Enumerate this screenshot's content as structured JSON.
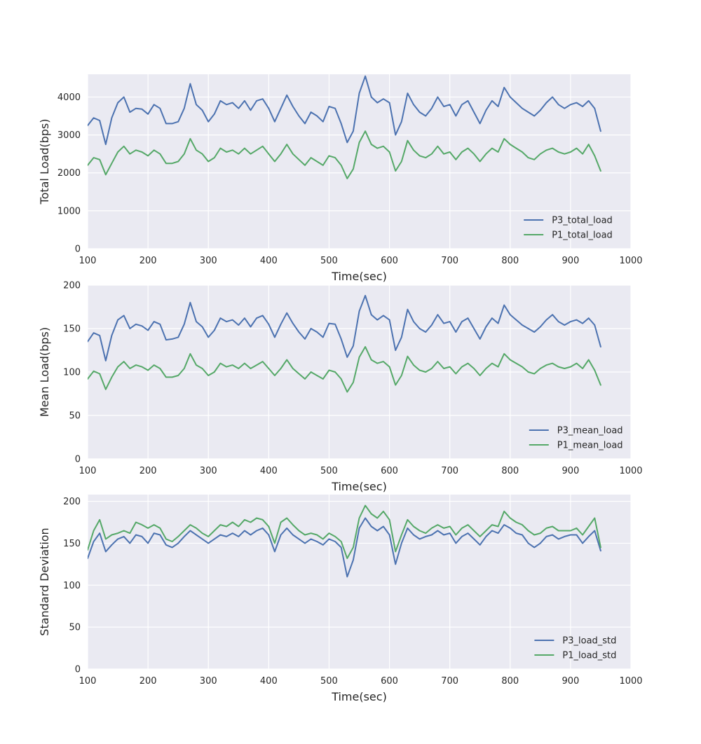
{
  "colors": {
    "series_a": "#4C72B0",
    "series_b": "#55A868"
  },
  "chart_data": [
    {
      "type": "line",
      "xlabel": "Time(sec)",
      "ylabel": "Total Load(bps)",
      "xlim": [
        100,
        1000
      ],
      "ylim": [
        0,
        4600
      ],
      "xticks": [
        "100",
        "200",
        "300",
        "400",
        "500",
        "600",
        "700",
        "800",
        "900",
        "1000"
      ],
      "yticks": [
        "0",
        "1000",
        "2000",
        "3000",
        "4000"
      ],
      "ytick_values": [
        0,
        1000,
        2000,
        3000,
        4000
      ],
      "legend_position": "lower-right",
      "x": [
        100,
        110,
        120,
        130,
        140,
        150,
        160,
        170,
        180,
        190,
        200,
        210,
        220,
        230,
        240,
        250,
        260,
        270,
        280,
        290,
        300,
        310,
        320,
        330,
        340,
        350,
        360,
        370,
        380,
        390,
        400,
        410,
        420,
        430,
        440,
        450,
        460,
        470,
        480,
        490,
        500,
        510,
        520,
        530,
        540,
        550,
        560,
        570,
        580,
        590,
        600,
        610,
        620,
        630,
        640,
        650,
        660,
        670,
        680,
        690,
        700,
        710,
        720,
        730,
        740,
        750,
        760,
        770,
        780,
        790,
        800,
        810,
        820,
        830,
        840,
        850,
        860,
        870,
        880,
        890,
        900,
        910,
        920,
        930,
        940,
        950
      ],
      "series": [
        {
          "name": "P3_total_load",
          "values": [
            3250,
            3450,
            3380,
            2750,
            3450,
            3850,
            4000,
            3600,
            3700,
            3680,
            3550,
            3800,
            3700,
            3300,
            3300,
            3350,
            3700,
            4350,
            3800,
            3650,
            3350,
            3550,
            3900,
            3800,
            3850,
            3700,
            3900,
            3650,
            3900,
            3950,
            3700,
            3350,
            3700,
            4050,
            3750,
            3500,
            3300,
            3600,
            3500,
            3350,
            3750,
            3700,
            3300,
            2800,
            3100,
            4100,
            4550,
            4000,
            3850,
            3950,
            3850,
            3000,
            3350,
            4100,
            3800,
            3600,
            3500,
            3700,
            4000,
            3750,
            3800,
            3500,
            3800,
            3900,
            3600,
            3300,
            3650,
            3900,
            3750,
            4250,
            4000,
            3850,
            3700,
            3600,
            3500,
            3650,
            3850,
            4000,
            3800,
            3700,
            3800,
            3850,
            3750,
            3900,
            3700,
            3100
          ]
        },
        {
          "name": "P1_total_load",
          "values": [
            2200,
            2400,
            2350,
            1950,
            2250,
            2550,
            2700,
            2500,
            2600,
            2550,
            2450,
            2600,
            2500,
            2250,
            2250,
            2300,
            2500,
            2900,
            2600,
            2500,
            2300,
            2400,
            2650,
            2550,
            2600,
            2500,
            2650,
            2500,
            2600,
            2700,
            2500,
            2300,
            2500,
            2750,
            2500,
            2350,
            2200,
            2400,
            2300,
            2200,
            2450,
            2400,
            2200,
            1850,
            2100,
            2800,
            3100,
            2750,
            2650,
            2700,
            2550,
            2050,
            2300,
            2850,
            2600,
            2450,
            2400,
            2500,
            2700,
            2500,
            2550,
            2350,
            2550,
            2650,
            2500,
            2300,
            2500,
            2650,
            2550,
            2900,
            2750,
            2650,
            2550,
            2400,
            2350,
            2500,
            2600,
            2650,
            2550,
            2500,
            2550,
            2650,
            2500,
            2750,
            2450,
            2050
          ]
        }
      ]
    },
    {
      "type": "line",
      "xlabel": "Time(sec)",
      "ylabel": "Mean Load(bps)",
      "xlim": [
        100,
        1000
      ],
      "ylim": [
        0,
        200
      ],
      "xticks": [
        "100",
        "200",
        "300",
        "400",
        "500",
        "600",
        "700",
        "800",
        "900",
        "1000"
      ],
      "yticks": [
        "0",
        "50",
        "100",
        "150",
        "200"
      ],
      "ytick_values": [
        0,
        50,
        100,
        150,
        200
      ],
      "legend_position": "lower-right",
      "x": [
        100,
        110,
        120,
        130,
        140,
        150,
        160,
        170,
        180,
        190,
        200,
        210,
        220,
        230,
        240,
        250,
        260,
        270,
        280,
        290,
        300,
        310,
        320,
        330,
        340,
        350,
        360,
        370,
        380,
        390,
        400,
        410,
        420,
        430,
        440,
        450,
        460,
        470,
        480,
        490,
        500,
        510,
        520,
        530,
        540,
        550,
        560,
        570,
        580,
        590,
        600,
        610,
        620,
        630,
        640,
        650,
        660,
        670,
        680,
        690,
        700,
        710,
        720,
        730,
        740,
        750,
        760,
        770,
        780,
        790,
        800,
        810,
        820,
        830,
        840,
        850,
        860,
        870,
        880,
        890,
        900,
        910,
        920,
        930,
        940,
        950
      ],
      "series": [
        {
          "name": "P3_mean_load",
          "values": [
            135,
            145,
            142,
            113,
            142,
            160,
            165,
            150,
            155,
            153,
            148,
            158,
            155,
            137,
            138,
            140,
            155,
            180,
            158,
            152,
            140,
            148,
            162,
            158,
            160,
            154,
            162,
            152,
            162,
            165,
            155,
            140,
            155,
            168,
            156,
            146,
            138,
            150,
            146,
            140,
            156,
            155,
            138,
            117,
            130,
            170,
            188,
            166,
            160,
            165,
            160,
            125,
            140,
            172,
            158,
            150,
            146,
            154,
            166,
            156,
            158,
            146,
            158,
            162,
            150,
            138,
            152,
            162,
            156,
            177,
            166,
            160,
            154,
            150,
            146,
            152,
            160,
            166,
            158,
            154,
            158,
            160,
            156,
            162,
            154,
            129
          ]
        },
        {
          "name": "P1_mean_load",
          "values": [
            92,
            101,
            98,
            80,
            94,
            106,
            112,
            104,
            108,
            106,
            102,
            108,
            104,
            94,
            94,
            96,
            104,
            121,
            108,
            104,
            96,
            100,
            110,
            106,
            108,
            104,
            110,
            104,
            108,
            112,
            104,
            96,
            104,
            114,
            104,
            98,
            92,
            100,
            96,
            92,
            102,
            100,
            92,
            77,
            88,
            117,
            129,
            114,
            110,
            112,
            106,
            85,
            96,
            118,
            108,
            102,
            100,
            104,
            112,
            104,
            106,
            98,
            106,
            110,
            104,
            96,
            104,
            110,
            106,
            121,
            114,
            110,
            106,
            100,
            98,
            104,
            108,
            110,
            106,
            104,
            106,
            110,
            104,
            114,
            102,
            85
          ]
        }
      ]
    },
    {
      "type": "line",
      "xlabel": "Time(sec)",
      "ylabel": "Standard Deviation",
      "xlim": [
        100,
        1000
      ],
      "ylim": [
        0,
        208
      ],
      "xticks": [
        "100",
        "200",
        "300",
        "400",
        "500",
        "600",
        "700",
        "800",
        "900",
        "1000"
      ],
      "yticks": [
        "0",
        "50",
        "100",
        "150",
        "200"
      ],
      "ytick_values": [
        0,
        50,
        100,
        150,
        200
      ],
      "legend_position": "lower-right",
      "x": [
        100,
        110,
        120,
        130,
        140,
        150,
        160,
        170,
        180,
        190,
        200,
        210,
        220,
        230,
        240,
        250,
        260,
        270,
        280,
        290,
        300,
        310,
        320,
        330,
        340,
        350,
        360,
        370,
        380,
        390,
        400,
        410,
        420,
        430,
        440,
        450,
        460,
        470,
        480,
        490,
        500,
        510,
        520,
        530,
        540,
        550,
        560,
        570,
        580,
        590,
        600,
        610,
        620,
        630,
        640,
        650,
        660,
        670,
        680,
        690,
        700,
        710,
        720,
        730,
        740,
        750,
        760,
        770,
        780,
        790,
        800,
        810,
        820,
        830,
        840,
        850,
        860,
        870,
        880,
        890,
        900,
        910,
        920,
        930,
        940,
        950
      ],
      "series": [
        {
          "name": "P3_load_std",
          "values": [
            132,
            152,
            162,
            140,
            148,
            155,
            158,
            150,
            160,
            158,
            150,
            162,
            160,
            148,
            145,
            150,
            158,
            165,
            160,
            155,
            150,
            155,
            160,
            158,
            162,
            158,
            165,
            160,
            165,
            168,
            160,
            140,
            160,
            168,
            160,
            155,
            150,
            155,
            152,
            148,
            155,
            152,
            145,
            110,
            130,
            168,
            180,
            170,
            165,
            170,
            160,
            125,
            150,
            168,
            160,
            155,
            158,
            160,
            165,
            160,
            162,
            150,
            158,
            162,
            155,
            148,
            158,
            165,
            162,
            172,
            168,
            162,
            160,
            150,
            145,
            150,
            158,
            160,
            155,
            158,
            160,
            160,
            150,
            158,
            165,
            141
          ]
        },
        {
          "name": "P1_load_std",
          "values": [
            142,
            165,
            178,
            155,
            160,
            162,
            165,
            162,
            175,
            172,
            168,
            172,
            168,
            155,
            152,
            158,
            165,
            172,
            168,
            162,
            158,
            165,
            172,
            170,
            175,
            170,
            178,
            175,
            180,
            178,
            170,
            150,
            175,
            180,
            172,
            165,
            160,
            162,
            160,
            155,
            162,
            158,
            152,
            132,
            145,
            180,
            195,
            185,
            180,
            188,
            178,
            140,
            160,
            178,
            170,
            165,
            162,
            168,
            172,
            168,
            170,
            160,
            168,
            172,
            165,
            158,
            165,
            172,
            170,
            188,
            180,
            175,
            172,
            165,
            160,
            162,
            168,
            170,
            165,
            165,
            165,
            168,
            160,
            170,
            180,
            145
          ]
        }
      ]
    }
  ]
}
